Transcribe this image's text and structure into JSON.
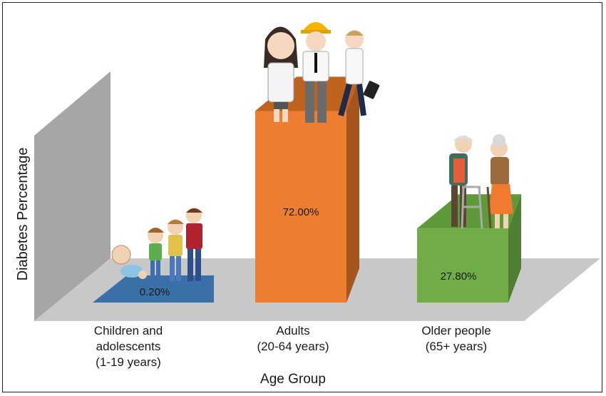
{
  "chart_data": {
    "type": "bar",
    "title": "",
    "xlabel": "Age Group",
    "ylabel": "Diabetes Percentage",
    "ylim": [
      0,
      100
    ],
    "grid": false,
    "legend": "none",
    "categories": [
      [
        "Children and",
        "adolescents",
        "(1-19 years)"
      ],
      [
        "Adults",
        "(20-64 years)"
      ],
      [
        "Older people",
        "(65+ years)"
      ]
    ],
    "values": [
      0.2,
      72.0,
      27.8
    ],
    "data_labels": [
      "0.20%",
      "72.00%",
      "27.80%"
    ],
    "colors": [
      {
        "front": "#3a6fa8",
        "top": "#3a6fa8",
        "side": "#2d5a8a"
      },
      {
        "front": "#ed7d31",
        "top": "#c0631f",
        "side": "#a6551d"
      },
      {
        "front": "#70ad47",
        "top": "#5e9a3a",
        "side": "#4f7f30"
      }
    ],
    "illustrations": [
      "children-figures",
      "adult-workers-figures",
      "elderly-couple-figures"
    ]
  }
}
